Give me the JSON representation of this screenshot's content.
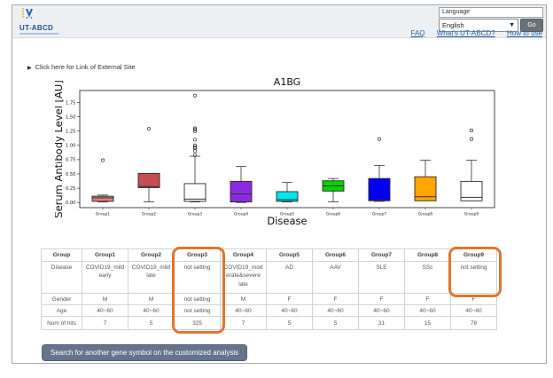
{
  "header": {
    "logo": {
      "title": "UT-ABCD"
    },
    "language": {
      "label": "Language",
      "selected": "English",
      "go_label": "Go"
    },
    "links": [
      {
        "label": "FAQ"
      },
      {
        "label": "What's UT-ABCD?"
      },
      {
        "label": "How to use"
      }
    ]
  },
  "external_link": {
    "label": "Click here for Link of External Site",
    "icon": "right-triangle-icon"
  },
  "chart_data": {
    "type": "boxplot",
    "title": "A1BG",
    "xlabel": "Disease",
    "ylabel": "Serum Antibody Level [AU]",
    "categories": [
      "Group1",
      "Group2",
      "Group3",
      "Group4",
      "Group5",
      "Group6",
      "Group7",
      "Group8",
      "Group9"
    ],
    "yticks": [
      0.0,
      0.25,
      0.5,
      0.75,
      1.0,
      1.25,
      1.5,
      1.75
    ],
    "ylim": [
      -0.09,
      1.96
    ],
    "grid": false,
    "series": [
      {
        "name": "Group1",
        "color": "#e08080",
        "whislo": 0.01,
        "q1": 0.02,
        "med": 0.08,
        "q3": 0.11,
        "whishi": 0.13,
        "outliers": [
          0.74
        ]
      },
      {
        "name": "Group2",
        "color": "#c44e52",
        "whislo": 0.01,
        "q1": 0.26,
        "med": 0.28,
        "q3": 0.51,
        "whishi": 0.51,
        "outliers": [
          1.29
        ]
      },
      {
        "name": "Group3",
        "color": "#ffffff",
        "whislo": 0.01,
        "q1": 0.02,
        "med": 0.06,
        "q3": 0.33,
        "whishi": 0.81,
        "outliers": [
          0.83,
          0.9,
          0.95,
          0.97,
          1.0,
          1.1,
          1.25,
          1.28,
          1.3,
          1.87
        ]
      },
      {
        "name": "Group4",
        "color": "#8a2be2",
        "whislo": 0.0,
        "q1": 0.01,
        "med": 0.15,
        "q3": 0.37,
        "whishi": 0.63,
        "outliers": []
      },
      {
        "name": "Group5",
        "color": "#00e5ee",
        "whislo": 0.01,
        "q1": 0.02,
        "med": 0.05,
        "q3": 0.19,
        "whishi": 0.35,
        "outliers": []
      },
      {
        "name": "Group6",
        "color": "#00d400",
        "whislo": 0.01,
        "q1": 0.2,
        "med": 0.29,
        "q3": 0.38,
        "whishi": 0.42,
        "outliers": []
      },
      {
        "name": "Group7",
        "color": "#0000ee",
        "whislo": 0.02,
        "q1": 0.03,
        "med": 0.04,
        "q3": 0.42,
        "whishi": 0.65,
        "outliers": [
          1.11
        ]
      },
      {
        "name": "Group8",
        "color": "#ffa500",
        "whislo": 0.03,
        "q1": 0.03,
        "med": 0.1,
        "q3": 0.45,
        "whishi": 0.74,
        "outliers": []
      },
      {
        "name": "Group9",
        "color": "#ffffff",
        "whislo": 0.03,
        "q1": 0.03,
        "med": 0.09,
        "q3": 0.37,
        "whishi": 0.74,
        "outliers": [
          1.11,
          1.26
        ]
      }
    ]
  },
  "table": {
    "rows": [
      {
        "label": "Group",
        "values": [
          "Group1",
          "Group2",
          "Group3",
          "Group4",
          "Group5",
          "Group6",
          "Group7",
          "Group8",
          "Group9"
        ]
      },
      {
        "label": "Disease",
        "values": [
          "COVID19_mild early",
          "COVID19_mild late",
          "not setting",
          "COVID19_moderate&severe late",
          "AD",
          "AAV",
          "SLE",
          "SSc",
          "not setting"
        ]
      },
      {
        "label": "Gender",
        "values": [
          "M",
          "M",
          "not setting",
          "M",
          "F",
          "F",
          "F",
          "F",
          "F"
        ]
      },
      {
        "label": "Age",
        "values": [
          "40~60",
          "40~60",
          "not setting",
          "40~60",
          "40~60",
          "40~60",
          "40~60",
          "40~60",
          "40~60"
        ]
      },
      {
        "label": "Num of hits",
        "values": [
          "7",
          "5",
          "325",
          "7",
          "5",
          "5",
          "31",
          "15",
          "78"
        ]
      }
    ],
    "highlight_color": "#e0762a",
    "highlights": [
      {
        "column": "Group3",
        "to_row": "Num of hits"
      },
      {
        "column": "Group9",
        "to_row": "Disease"
      }
    ]
  },
  "footer": {
    "search_button_label": "Search for another gene symbol on the customized analysis"
  }
}
